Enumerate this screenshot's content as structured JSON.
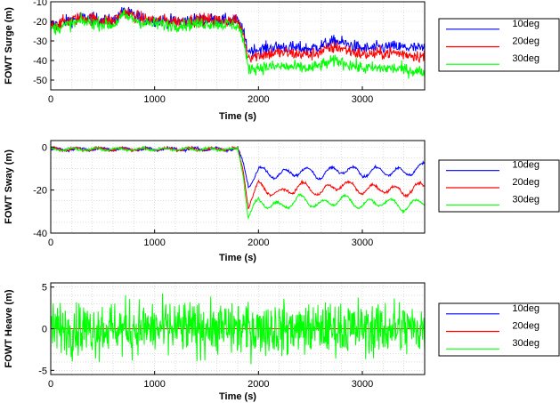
{
  "colors": {
    "10deg": "#0000ff",
    "20deg": "#ff0000",
    "30deg": "#00ff00"
  },
  "chart_data": [
    {
      "type": "line",
      "xlabel": "Time (s)",
      "ylabel": "FOWT Surge (m)",
      "xlim": [
        0,
        3600
      ],
      "ylim": [
        -55,
        -10
      ],
      "xticks": [
        0,
        1000,
        2000,
        3000
      ],
      "yticks": [
        -10,
        -20,
        -30,
        -40,
        -50
      ],
      "grid": true,
      "legend": "right",
      "series": [
        {
          "name": "10deg",
          "x": [
            0,
            300,
            600,
            700,
            900,
            1200,
            1500,
            1800,
            1850,
            1900,
            2200,
            2500,
            2750,
            3000,
            3300,
            3600
          ],
          "values": [
            -22,
            -18,
            -20,
            -15,
            -19,
            -20,
            -19,
            -20,
            -25,
            -35,
            -33,
            -34,
            -30,
            -34,
            -33,
            -34
          ]
        },
        {
          "name": "20deg",
          "x": [
            0,
            300,
            600,
            700,
            900,
            1200,
            1500,
            1800,
            1850,
            1900,
            2200,
            2500,
            2750,
            3000,
            3300,
            3600
          ],
          "values": [
            -22,
            -18,
            -20,
            -15,
            -19,
            -20,
            -19,
            -20,
            -26,
            -38,
            -36,
            -37,
            -33,
            -37,
            -36,
            -38
          ]
        },
        {
          "name": "30deg",
          "x": [
            0,
            300,
            600,
            700,
            900,
            1200,
            1500,
            1800,
            1850,
            1900,
            2200,
            2500,
            2750,
            3000,
            3300,
            3600
          ],
          "values": [
            -24,
            -20,
            -22,
            -17,
            -21,
            -22,
            -21,
            -22,
            -28,
            -44,
            -43,
            -44,
            -40,
            -44,
            -44,
            -46
          ]
        }
      ]
    },
    {
      "type": "line",
      "xlabel": "Time (s)",
      "ylabel": "FOWT Sway (m)",
      "xlim": [
        0,
        3600
      ],
      "ylim": [
        -40,
        3
      ],
      "xticks": [
        0,
        1000,
        2000,
        3000
      ],
      "yticks": [
        0,
        -20,
        -40
      ],
      "grid": true,
      "legend": "right",
      "series": [
        {
          "name": "10deg",
          "x": [
            0,
            200,
            600,
            1000,
            1500,
            1800,
            1850,
            1900,
            2000,
            2200,
            2400,
            2600,
            2800,
            3000,
            3200,
            3400,
            3600
          ],
          "values": [
            -1,
            -1,
            -1,
            -1,
            -1,
            -1,
            -7,
            -17,
            -11,
            -13,
            -11,
            -13,
            -10,
            -12,
            -11,
            -12,
            -9
          ]
        },
        {
          "name": "20deg",
          "x": [
            0,
            200,
            600,
            1000,
            1500,
            1800,
            1850,
            1900,
            2000,
            2200,
            2400,
            2600,
            2800,
            3000,
            3200,
            3400,
            3600
          ],
          "values": [
            -1,
            -1,
            -1,
            -1,
            -1,
            -1,
            -10,
            -27,
            -18,
            -22,
            -18,
            -21,
            -17,
            -20,
            -19,
            -21,
            -18
          ]
        },
        {
          "name": "30deg",
          "x": [
            0,
            200,
            600,
            1000,
            1500,
            1800,
            1850,
            1900,
            2000,
            2200,
            2400,
            2600,
            2800,
            3000,
            3200,
            3400,
            3600
          ],
          "values": [
            -1,
            -1,
            -1,
            -1,
            -1,
            -1,
            -12,
            -33,
            -25,
            -28,
            -24,
            -27,
            -24,
            -27,
            -25,
            -28,
            -25
          ]
        }
      ]
    },
    {
      "type": "line",
      "xlabel": "Time (s)",
      "ylabel": "FOWT Heave (m)",
      "xlim": [
        0,
        3600
      ],
      "ylim": [
        -5.5,
        5.5
      ],
      "xticks": [
        0,
        1000,
        2000,
        3000
      ],
      "yticks": [
        5,
        0,
        -5
      ],
      "grid": true,
      "legend": "right",
      "series": [
        {
          "name": "10deg",
          "x": [
            0,
            3600
          ],
          "values": [
            0,
            0
          ]
        },
        {
          "name": "20deg",
          "x": [
            0,
            3600
          ],
          "values": [
            0,
            0
          ]
        },
        {
          "name": "30deg",
          "x": [
            0,
            300,
            900,
            1300,
            1800,
            2200,
            2700,
            3300,
            3600
          ],
          "values": [
            0,
            2.5,
            -3,
            3,
            5,
            -4,
            3,
            -3.5,
            0
          ]
        }
      ]
    }
  ]
}
